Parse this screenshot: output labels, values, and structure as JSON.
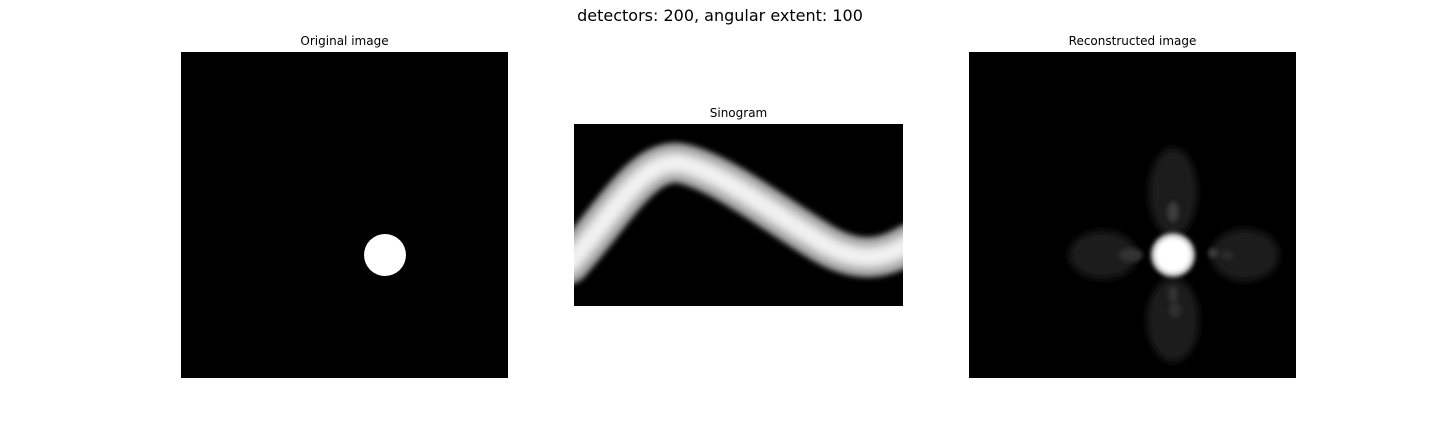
{
  "figure": {
    "suptitle": "detectors: 200, angular extent: 100"
  },
  "panels": {
    "original": {
      "title": "Original image"
    },
    "sinogram": {
      "title": "Sinogram"
    },
    "reconstructed": {
      "title": "Reconstructed image"
    }
  },
  "colors": {
    "background": "#000000",
    "foreground": "#ffffff"
  }
}
